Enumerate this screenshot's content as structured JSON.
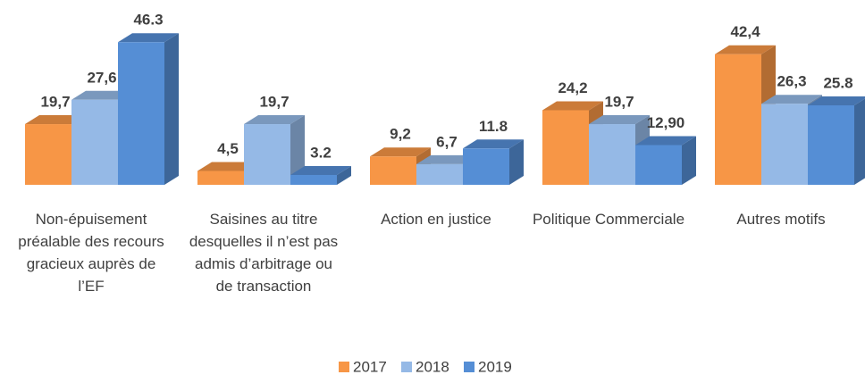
{
  "chart_data": {
    "type": "bar",
    "categories": [
      "Non-épuisement préalable des recours gracieux auprès de l’EF",
      "Saisines au titre desquelles il n’est pas admis d’arbitrage ou de transaction",
      "Action en justice",
      "Politique Commerciale",
      "Autres motifs"
    ],
    "series": [
      {
        "name": "2017",
        "color": "#f79646",
        "values": [
          19.7,
          4.5,
          9.2,
          24.2,
          42.4
        ],
        "value_labels": [
          "19,7",
          "4,5",
          "9,2",
          "24,2",
          "42,4"
        ]
      },
      {
        "name": "2018",
        "color": "#95b9e6",
        "values": [
          27.6,
          19.7,
          6.7,
          19.7,
          26.3
        ],
        "value_labels": [
          "27,6",
          "19,7",
          "6,7",
          "19,7",
          "26,3"
        ]
      },
      {
        "name": "2019",
        "color": "#558ed5",
        "values": [
          46.3,
          3.2,
          11.8,
          12.9,
          25.8
        ],
        "value_labels": [
          "46.3",
          "3.2",
          "11.8",
          "12,90",
          "25.8"
        ]
      }
    ],
    "legend": "bottom"
  }
}
